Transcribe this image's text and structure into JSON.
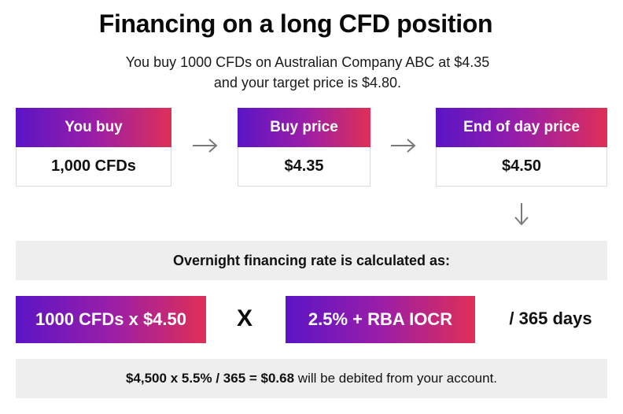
{
  "title": "Financing on a long CFD position",
  "subtitle_line1": "You buy 1000 CFDs on Australian Company ABC at $4.35",
  "subtitle_line2": "and your target price is $4.80.",
  "cards": [
    {
      "label": "You buy",
      "value": "1,000 CFDs"
    },
    {
      "label": "Buy price",
      "value": "$4.35"
    },
    {
      "label": "End of day price",
      "value": "$4.50"
    }
  ],
  "rate_text": "Overnight financing rate is calculated as:",
  "formula": {
    "left": "1000 CFDs x $4.50",
    "operator": "X",
    "right": "2.5% + RBA IOCR",
    "divisor": "/ 365 days"
  },
  "result": {
    "bold": "$4,500 x 5.5% / 365 = $0.68",
    "rest": " will be debited from your account."
  },
  "icons": {
    "arrow_right": "arrow-right-icon",
    "arrow_down": "arrow-down-icon"
  },
  "colors": {
    "gradient_start": "#5b14c6",
    "gradient_mid": "#9a1ea8",
    "gradient_end": "#df2f57",
    "panel_bg": "#eeeeee",
    "arrow": "#7a7a7a"
  }
}
